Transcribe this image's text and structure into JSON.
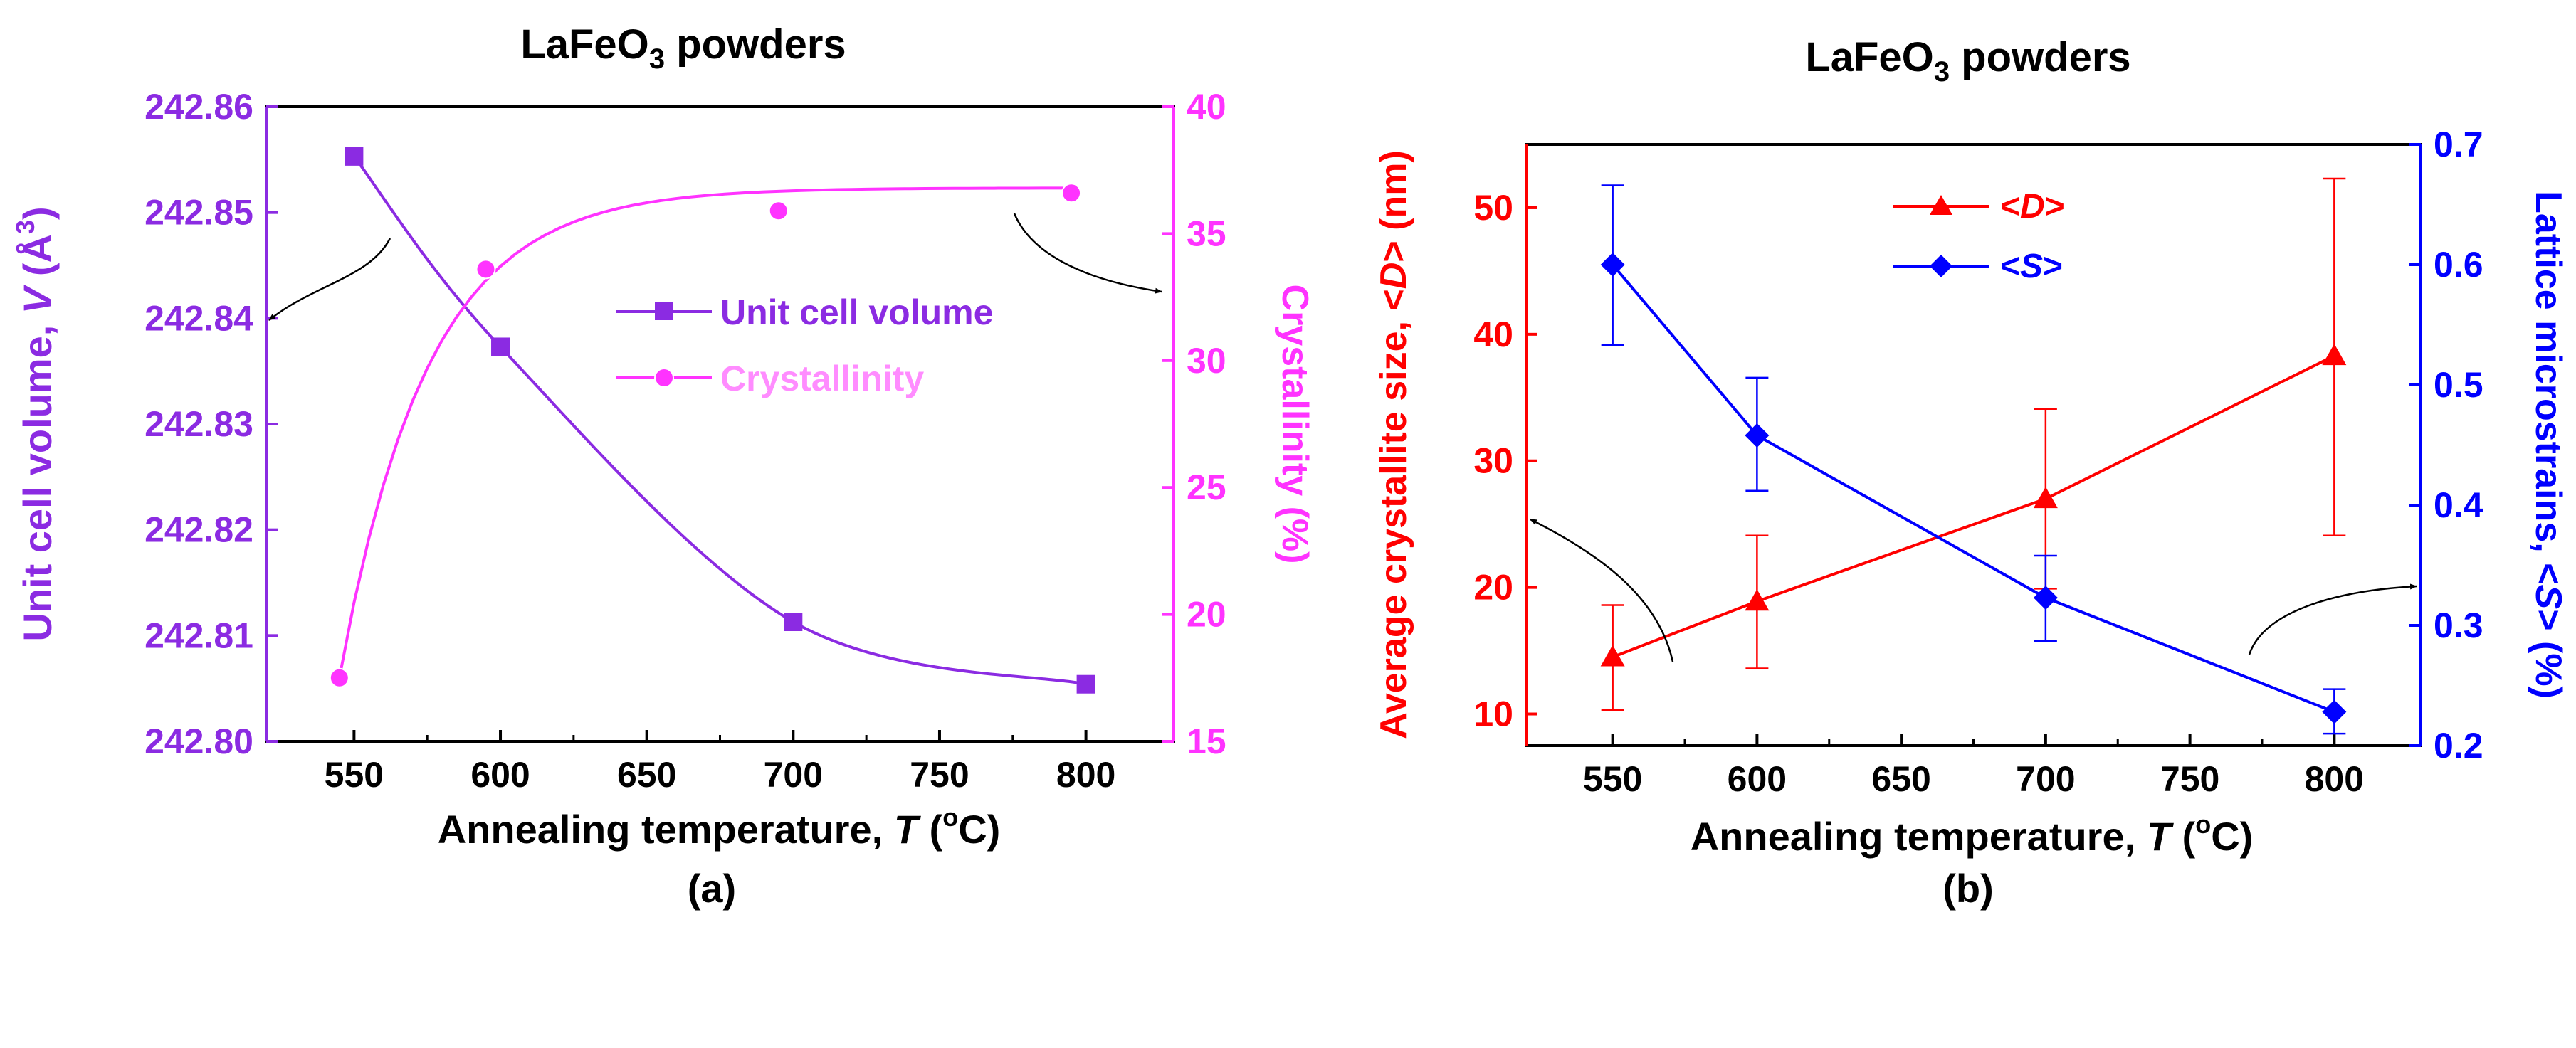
{
  "colors": {
    "volume": "#8B2BE2",
    "crystallinity": "#FF33FF",
    "crystallinity_legend": "#FF8CFF",
    "size": "#FF0000",
    "strain": "#0000FF",
    "axis": "#000000",
    "arrow": "#000000"
  },
  "chart_data": [
    {
      "type": "scatter",
      "panel_label": "(a)",
      "title": {
        "prefix": "LaFeO",
        "sub": "3",
        "suffix": " powders"
      },
      "xlabel": {
        "prefix": "Annealing temperature, ",
        "var": "T",
        "mid": " (",
        "sup": "o",
        "suffix": "C)"
      },
      "xlim": [
        520,
        830
      ],
      "xticks": [
        550,
        600,
        650,
        700,
        750,
        800
      ],
      "xtick_labels": [
        "550",
        "600",
        "650",
        "700",
        "750",
        "800"
      ],
      "ylabel_left": {
        "prefix": "Unit cell volume, ",
        "var": "V",
        "mid": " (Å",
        "sup": "3",
        "suffix": ")"
      },
      "ylim_left": [
        242.8,
        242.86
      ],
      "yticks_left": [
        242.8,
        242.81,
        242.82,
        242.83,
        242.84,
        242.85,
        242.86
      ],
      "ytick_labels_left": [
        "242.80",
        "242.81",
        "242.82",
        "242.83",
        "242.84",
        "242.85",
        "242.86"
      ],
      "ylabel_right": "Crystallinity (%)",
      "ylim_right": [
        15,
        40
      ],
      "yticks_right": [
        15,
        20,
        25,
        30,
        35,
        40
      ],
      "ytick_labels_right": [
        "15",
        "20",
        "25",
        "30",
        "35",
        "40"
      ],
      "legend_position": "center-right",
      "series": [
        {
          "name": "Unit cell volume",
          "axis": "left",
          "marker": "square",
          "x": [
            550,
            600,
            700,
            800
          ],
          "y": [
            242.8553,
            242.8373,
            242.8113,
            242.8054
          ],
          "fit_curve": true
        },
        {
          "name": "Crystallinity",
          "axis": "right",
          "marker": "circle",
          "x": [
            545,
            595,
            695,
            795
          ],
          "y": [
            17.5,
            33.6,
            35.9,
            36.6
          ],
          "fit_curve": true
        }
      ]
    },
    {
      "type": "line",
      "panel_label": "(b)",
      "title": {
        "prefix": "LaFeO",
        "sub": "3",
        "suffix": " powders"
      },
      "xlabel": {
        "prefix": "Annealing temperature, ",
        "var": "T",
        "mid": " (",
        "sup": "o",
        "suffix": "C)"
      },
      "xlim": [
        520,
        830
      ],
      "xticks": [
        550,
        600,
        650,
        700,
        750,
        800
      ],
      "xtick_labels": [
        "550",
        "600",
        "650",
        "700",
        "750",
        "800"
      ],
      "ylabel_left": {
        "prefix": "Average crystallite size, <",
        "var": "D",
        "suffix": "> (nm)"
      },
      "ylim_left": [
        7.5,
        55
      ],
      "yticks_left": [
        10,
        20,
        30,
        40,
        50
      ],
      "ytick_labels_left": [
        "10",
        "20",
        "30",
        "40",
        "50"
      ],
      "ylabel_right": {
        "prefix": "Lattice microstrains, <",
        "var": "S",
        "suffix": "> (%)"
      },
      "ylim_right": [
        0.2,
        0.7
      ],
      "yticks_right": [
        0.2,
        0.3,
        0.4,
        0.5,
        0.6,
        0.7
      ],
      "ytick_labels_right": [
        "0.2",
        "0.3",
        "0.4",
        "0.5",
        "0.6",
        "0.7"
      ],
      "legend_position": "top-center",
      "series": [
        {
          "name": {
            "prefix": "<",
            "var": "D",
            "suffix": ">"
          },
          "axis": "left",
          "marker": "triangle",
          "x": [
            550,
            600,
            700,
            800
          ],
          "y": [
            14.5,
            18.9,
            27.0,
            38.3
          ],
          "err_low": [
            10.3,
            13.6,
            19.9,
            24.1
          ],
          "err_high": [
            18.6,
            24.1,
            34.1,
            52.3
          ]
        },
        {
          "name": {
            "prefix": "<",
            "var": "S",
            "suffix": ">"
          },
          "axis": "right",
          "marker": "diamond",
          "x": [
            550,
            600,
            700,
            800
          ],
          "y": [
            0.6,
            0.458,
            0.323,
            0.228
          ],
          "err_low": [
            0.533,
            0.412,
            0.287,
            0.21
          ],
          "err_high": [
            0.666,
            0.506,
            0.358,
            0.247
          ]
        }
      ]
    }
  ]
}
